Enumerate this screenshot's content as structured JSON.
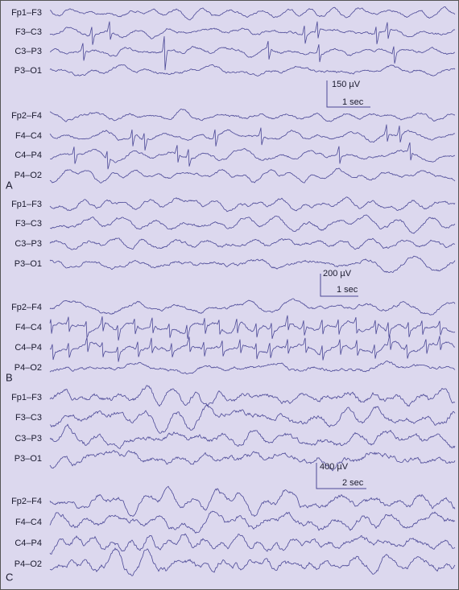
{
  "panels": [
    {
      "label": "A",
      "channels_top": [
        "Fp1–F3",
        "F3–C3",
        "C3–P3",
        "P3–O1"
      ],
      "scale": {
        "amplitude": "150 µV",
        "time": "1 sec"
      },
      "channels_bottom": [
        "Fp2–F4",
        "F4–C4",
        "C4–P4",
        "P4–O2"
      ]
    },
    {
      "label": "B",
      "channels_top": [
        "Fp1–F3",
        "F3–C3",
        "C3–P3",
        "P3–O1"
      ],
      "scale": {
        "amplitude": "200 µV",
        "time": "1 sec"
      },
      "channels_bottom": [
        "Fp2–F4",
        "F4–C4",
        "C4–P4",
        "P4–O2"
      ]
    },
    {
      "label": "C",
      "channels_top": [
        "Fp1–F3",
        "F3–C3",
        "C3–P3",
        "P3–O1"
      ],
      "scale": {
        "amplitude": "400 µV",
        "time": "2 sec"
      },
      "channels_bottom": [
        "Fp2–F4",
        "F4–C4",
        "C4–P4",
        "P4–O2"
      ]
    }
  ]
}
